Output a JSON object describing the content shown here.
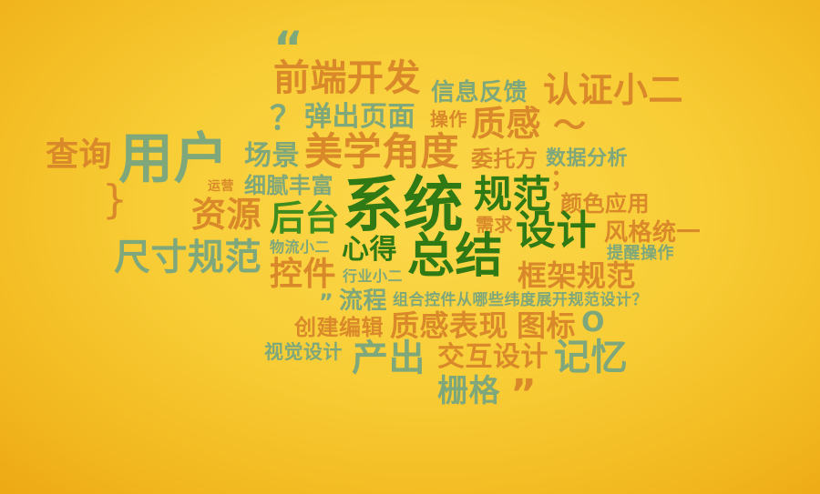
{
  "word_cloud": {
    "colors": {
      "orange": "#d9892a",
      "sage": "#7ea77b",
      "green": "#3f8d1e",
      "dark_green": "#2f7a14",
      "background": "#f8cd36"
    },
    "words": [
      {
        "text": "“",
        "color": "sage"
      },
      {
        "text": "前端开发",
        "color": "orange"
      },
      {
        "text": "信息反馈",
        "color": "sage"
      },
      {
        "text": "认证小二",
        "color": "orange"
      },
      {
        "text": "？",
        "color": "sage"
      },
      {
        "text": "弹出页面",
        "color": "sage"
      },
      {
        "text": "操作",
        "color": "orange"
      },
      {
        "text": "质感",
        "color": "orange"
      },
      {
        "text": "～",
        "color": "orange"
      },
      {
        "text": "查询",
        "color": "orange"
      },
      {
        "text": "用户",
        "color": "sage"
      },
      {
        "text": "场景",
        "color": "sage"
      },
      {
        "text": "美学角度",
        "color": "orange"
      },
      {
        "text": "委托方",
        "color": "orange"
      },
      {
        "text": "数据分析",
        "color": "sage"
      },
      {
        "text": "；",
        "color": "orange"
      },
      {
        "text": "运营",
        "color": "orange"
      },
      {
        "text": "细腻丰富",
        "color": "sage"
      },
      {
        "text": "}",
        "color": "orange"
      },
      {
        "text": "系统",
        "color": "dark_green"
      },
      {
        "text": "规范",
        "color": "dark_green"
      },
      {
        "text": "颜色应用",
        "color": "orange"
      },
      {
        "text": "资源",
        "color": "orange"
      },
      {
        "text": "后台",
        "color": "green"
      },
      {
        "text": "需求",
        "color": "orange"
      },
      {
        "text": "设计",
        "color": "dark_green"
      },
      {
        "text": "风格统一",
        "color": "orange"
      },
      {
        "text": "尺寸规范",
        "color": "sage"
      },
      {
        "text": "物流小二",
        "color": "sage"
      },
      {
        "text": "心得",
        "color": "dark_green"
      },
      {
        "text": "总结",
        "color": "dark_green"
      },
      {
        "text": "提醒操作",
        "color": "sage"
      },
      {
        "text": "控件",
        "color": "orange"
      },
      {
        "text": "行业小二",
        "color": "sage"
      },
      {
        "text": "框架规范",
        "color": "orange"
      },
      {
        "text": "”",
        "color": "sage"
      },
      {
        "text": "流程",
        "color": "sage"
      },
      {
        "text": "组合控件从哪些纬度展开规范设计？",
        "color": "sage"
      },
      {
        "text": "创建编辑",
        "color": "orange"
      },
      {
        "text": "质感表现",
        "color": "orange"
      },
      {
        "text": "图标",
        "color": "orange"
      },
      {
        "text": "O",
        "color": "sage"
      },
      {
        "text": "视觉设计",
        "color": "sage"
      },
      {
        "text": "产出",
        "color": "sage"
      },
      {
        "text": "交互设计",
        "color": "orange"
      },
      {
        "text": "记忆",
        "color": "sage"
      },
      {
        "text": "栅格",
        "color": "sage"
      },
      {
        "text": "”",
        "color": "orange"
      }
    ]
  }
}
